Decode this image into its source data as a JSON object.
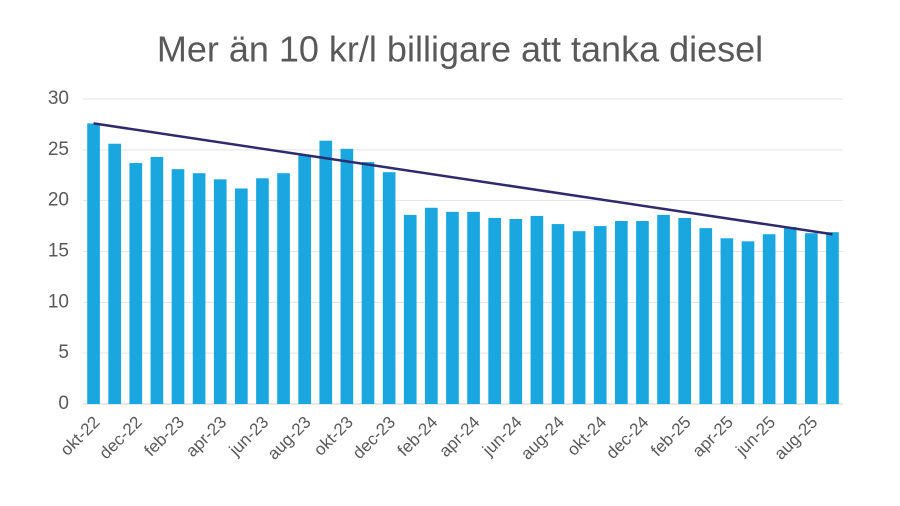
{
  "chart_data": {
    "type": "bar",
    "title": "Mer än 10 kr/l billigare att tanka diesel",
    "categories": [
      "okt-22",
      null,
      "dec-22",
      null,
      "feb-23",
      null,
      "apr-23",
      null,
      "jun-23",
      null,
      "aug-23",
      null,
      "okt-23",
      null,
      "dec-23",
      null,
      "feb-24",
      null,
      "apr-24",
      null,
      "jun-24",
      null,
      "aug-24",
      null,
      "okt-24",
      null,
      "dec-24",
      null,
      "feb-25",
      null,
      "apr-25",
      null,
      "jun-25",
      null,
      "aug-25",
      null
    ],
    "values": [
      27.6,
      25.6,
      23.7,
      24.3,
      23.1,
      22.7,
      22.1,
      21.2,
      22.2,
      22.7,
      24.5,
      25.9,
      25.1,
      23.8,
      22.8,
      18.6,
      19.3,
      18.9,
      18.9,
      18.3,
      18.2,
      18.5,
      17.7,
      17.0,
      17.5,
      18.0,
      18.0,
      18.6,
      18.3,
      17.3,
      16.3,
      16.0,
      16.7,
      17.4,
      16.8,
      16.9
    ],
    "color": "#1aa7e0",
    "trendline": {
      "values": [
        27.6,
        16.7
      ],
      "color": "#2e2a6b"
    },
    "ylim": [
      0,
      30
    ],
    "yticks": [
      0,
      5,
      10,
      15,
      20,
      25,
      30
    ],
    "grid": true
  }
}
